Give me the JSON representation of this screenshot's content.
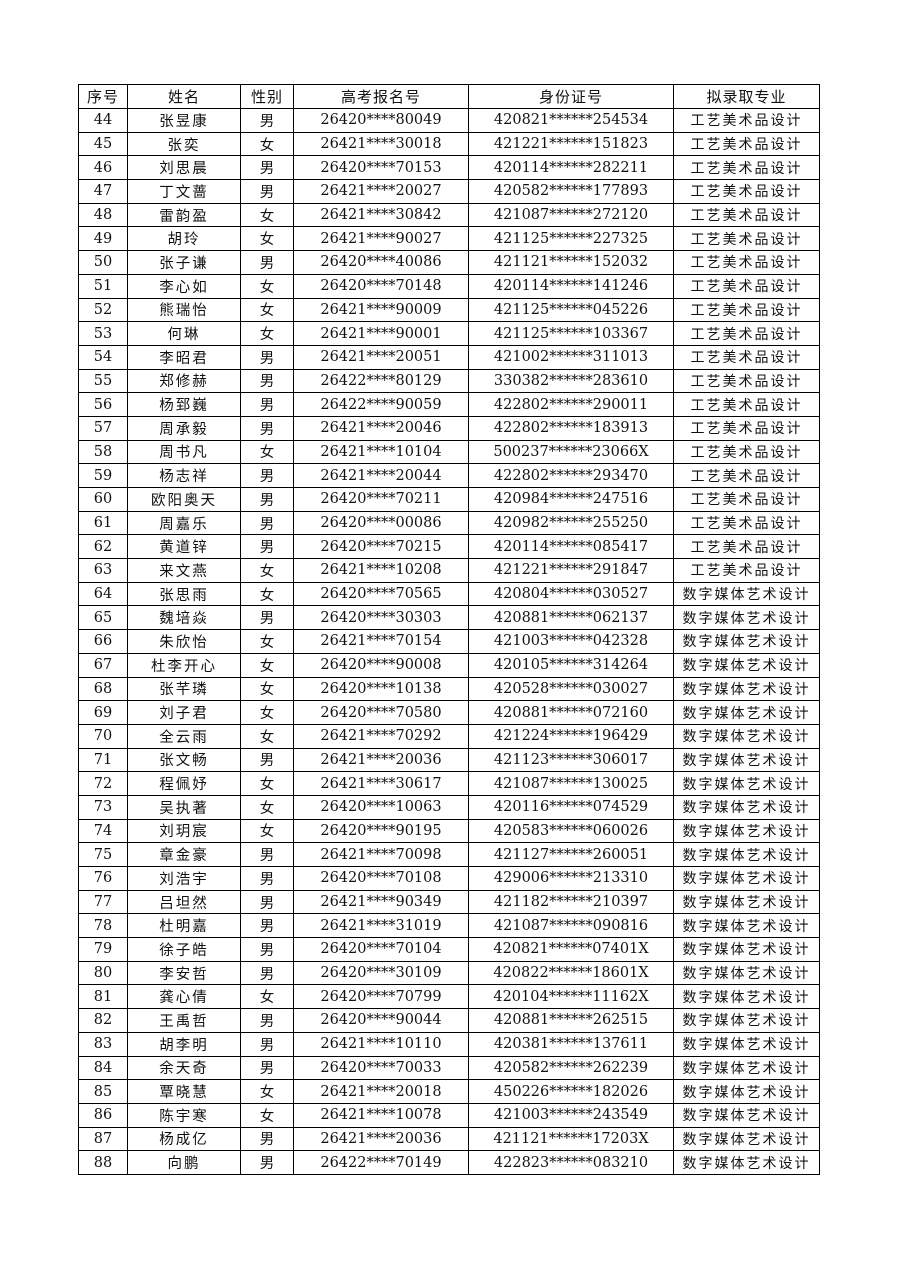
{
  "table": {
    "headers": [
      "序号",
      "姓名",
      "性别",
      "高考报名号",
      "身份证号",
      "拟录取专业"
    ],
    "rows": [
      [
        "44",
        "张昱康",
        "男",
        "26420****80049",
        "420821******254534",
        "工艺美术品设计"
      ],
      [
        "45",
        "张奕",
        "女",
        "26421****30018",
        "421221******151823",
        "工艺美术品设计"
      ],
      [
        "46",
        "刘思晨",
        "男",
        "26420****70153",
        "420114******282211",
        "工艺美术品设计"
      ],
      [
        "47",
        "丁文蔷",
        "男",
        "26421****20027",
        "420582******177893",
        "工艺美术品设计"
      ],
      [
        "48",
        "雷韵盈",
        "女",
        "26421****30842",
        "421087******272120",
        "工艺美术品设计"
      ],
      [
        "49",
        "胡玲",
        "女",
        "26421****90027",
        "421125******227325",
        "工艺美术品设计"
      ],
      [
        "50",
        "张子谦",
        "男",
        "26420****40086",
        "421121******152032",
        "工艺美术品设计"
      ],
      [
        "51",
        "李心如",
        "女",
        "26420****70148",
        "420114******141246",
        "工艺美术品设计"
      ],
      [
        "52",
        "熊瑞怡",
        "女",
        "26421****90009",
        "421125******045226",
        "工艺美术品设计"
      ],
      [
        "53",
        "何琳",
        "女",
        "26421****90001",
        "421125******103367",
        "工艺美术品设计"
      ],
      [
        "54",
        "李昭君",
        "男",
        "26421****20051",
        "421002******311013",
        "工艺美术品设计"
      ],
      [
        "55",
        "郑修赫",
        "男",
        "26422****80129",
        "330382******283610",
        "工艺美术品设计"
      ],
      [
        "56",
        "杨郅巍",
        "男",
        "26422****90059",
        "422802******290011",
        "工艺美术品设计"
      ],
      [
        "57",
        "周承毅",
        "男",
        "26421****20046",
        "422802******183913",
        "工艺美术品设计"
      ],
      [
        "58",
        "周书凡",
        "女",
        "26421****10104",
        "500237******23066X",
        "工艺美术品设计"
      ],
      [
        "59",
        "杨志祥",
        "男",
        "26421****20044",
        "422802******293470",
        "工艺美术品设计"
      ],
      [
        "60",
        "欧阳奥天",
        "男",
        "26420****70211",
        "420984******247516",
        "工艺美术品设计"
      ],
      [
        "61",
        "周嘉乐",
        "男",
        "26420****00086",
        "420982******255250",
        "工艺美术品设计"
      ],
      [
        "62",
        "黄道锌",
        "男",
        "26420****70215",
        "420114******085417",
        "工艺美术品设计"
      ],
      [
        "63",
        "来文燕",
        "女",
        "26421****10208",
        "421221******291847",
        "工艺美术品设计"
      ],
      [
        "64",
        "张思雨",
        "女",
        "26420****70565",
        "420804******030527",
        "数字媒体艺术设计"
      ],
      [
        "65",
        "魏培焱",
        "男",
        "26420****30303",
        "420881******062137",
        "数字媒体艺术设计"
      ],
      [
        "66",
        "朱欣怡",
        "女",
        "26421****70154",
        "421003******042328",
        "数字媒体艺术设计"
      ],
      [
        "67",
        "杜李开心",
        "女",
        "26420****90008",
        "420105******314264",
        "数字媒体艺术设计"
      ],
      [
        "68",
        "张芊璘",
        "女",
        "26420****10138",
        "420528******030027",
        "数字媒体艺术设计"
      ],
      [
        "69",
        "刘子君",
        "女",
        "26420****70580",
        "420881******072160",
        "数字媒体艺术设计"
      ],
      [
        "70",
        "全云雨",
        "女",
        "26421****70292",
        "421224******196429",
        "数字媒体艺术设计"
      ],
      [
        "71",
        "张文畅",
        "男",
        "26421****20036",
        "421123******306017",
        "数字媒体艺术设计"
      ],
      [
        "72",
        "程佩妤",
        "女",
        "26421****30617",
        "421087******130025",
        "数字媒体艺术设计"
      ],
      [
        "73",
        "吴执著",
        "女",
        "26420****10063",
        "420116******074529",
        "数字媒体艺术设计"
      ],
      [
        "74",
        "刘玥宸",
        "女",
        "26420****90195",
        "420583******060026",
        "数字媒体艺术设计"
      ],
      [
        "75",
        "章金豪",
        "男",
        "26421****70098",
        "421127******260051",
        "数字媒体艺术设计"
      ],
      [
        "76",
        "刘浩宇",
        "男",
        "26420****70108",
        "429006******213310",
        "数字媒体艺术设计"
      ],
      [
        "77",
        "吕坦然",
        "男",
        "26421****90349",
        "421182******210397",
        "数字媒体艺术设计"
      ],
      [
        "78",
        "杜明嘉",
        "男",
        "26421****31019",
        "421087******090816",
        "数字媒体艺术设计"
      ],
      [
        "79",
        "徐子皓",
        "男",
        "26420****70104",
        "420821******07401X",
        "数字媒体艺术设计"
      ],
      [
        "80",
        "李安哲",
        "男",
        "26420****30109",
        "420822******18601X",
        "数字媒体艺术设计"
      ],
      [
        "81",
        "龚心倩",
        "女",
        "26420****70799",
        "420104******11162X",
        "数字媒体艺术设计"
      ],
      [
        "82",
        "王禹哲",
        "男",
        "26420****90044",
        "420881******262515",
        "数字媒体艺术设计"
      ],
      [
        "83",
        "胡李明",
        "男",
        "26421****10110",
        "420381******137611",
        "数字媒体艺术设计"
      ],
      [
        "84",
        "余天奇",
        "男",
        "26420****70033",
        "420582******262239",
        "数字媒体艺术设计"
      ],
      [
        "85",
        "覃晓慧",
        "女",
        "26421****20018",
        "450226******182026",
        "数字媒体艺术设计"
      ],
      [
        "86",
        "陈宇寒",
        "女",
        "26421****10078",
        "421003******243549",
        "数字媒体艺术设计"
      ],
      [
        "87",
        "杨成亿",
        "男",
        "26421****20036",
        "421121******17203X",
        "数字媒体艺术设计"
      ],
      [
        "88",
        "向鹏",
        "男",
        "26422****70149",
        "422823******083210",
        "数字媒体艺术设计"
      ]
    ]
  }
}
